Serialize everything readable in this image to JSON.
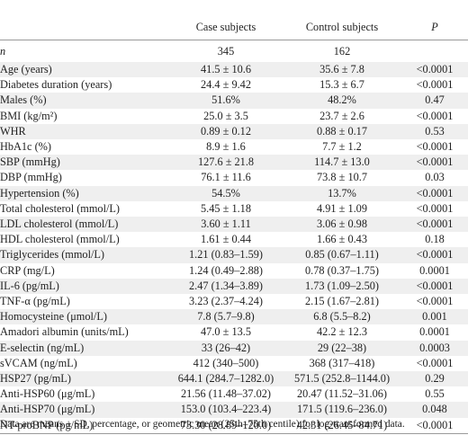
{
  "table": {
    "headers": [
      "",
      "Case subjects",
      "Control subjects",
      "P"
    ],
    "n_row": {
      "label": "n",
      "case": "345",
      "control": "162",
      "p": ""
    },
    "rows": [
      {
        "label": "Age (years)",
        "case": "41.5 ± 10.6",
        "control": "35.6 ± 7.8",
        "p": "<0.0001"
      },
      {
        "label": "Diabetes duration (years)",
        "case": "24.4 ± 9.42",
        "control": "15.3 ± 6.7",
        "p": "<0.0001"
      },
      {
        "label": "Males (%)",
        "case": "51.6%",
        "control": "48.2%",
        "p": "0.47"
      },
      {
        "label": "BMI (kg/m²)",
        "case": "25.0 ± 3.5",
        "control": "23.7 ± 2.6",
        "p": "<0.0001"
      },
      {
        "label": "WHR",
        "case": "0.89 ± 0.12",
        "control": "0.88 ± 0.17",
        "p": "0.53"
      },
      {
        "label": "HbA1c (%)",
        "case": "8.9 ± 1.6",
        "control": "7.7 ± 1.2",
        "p": "<0.0001"
      },
      {
        "label": "SBP (mmHg)",
        "case": "127.6 ± 21.8",
        "control": "114.7 ± 13.0",
        "p": "<0.0001"
      },
      {
        "label": "DBP (mmHg)",
        "case": "76.1 ± 11.6",
        "control": "73.8 ± 10.7",
        "p": "0.03"
      },
      {
        "label": "Hypertension (%)",
        "case": "54.5%",
        "control": "13.7%",
        "p": "<0.0001"
      },
      {
        "label": "Total cholesterol (mmol/L)",
        "case": "5.45 ± 1.18",
        "control": "4.91 ± 1.09",
        "p": "<0.0001"
      },
      {
        "label": "LDL cholesterol (mmol/L)",
        "case": "3.60 ± 1.11",
        "control": "3.06 ± 0.98",
        "p": "<0.0001"
      },
      {
        "label": "HDL cholesterol (mmol/L)",
        "case": "1.61 ± 0.44",
        "control": "1.66 ± 0.43",
        "p": "0.18"
      },
      {
        "label": "Triglycerides (mmol/L)",
        "case": "1.21 (0.83–1.59)",
        "control": "0.85 (0.67–1.11)",
        "p": "<0.0001"
      },
      {
        "label": "CRP (mg/L)",
        "case": "1.24 (0.49–2.88)",
        "control": "0.78 (0.37–1.75)",
        "p": "0.0001"
      },
      {
        "label": "IL-6 (pg/mL)",
        "case": "2.47 (1.34–3.89)",
        "control": "1.73 (1.09–2.50)",
        "p": "<0.0001"
      },
      {
        "label": "TNF-α (pg/mL)",
        "case": "3.23 (2.37–4.24)",
        "control": "2.15 (1.67–2.81)",
        "p": "<0.0001"
      },
      {
        "label": "Homocysteine (μmol/L)",
        "case": "7.8 (5.7–9.8)",
        "control": "6.8 (5.5–8.2)",
        "p": "0.001"
      },
      {
        "label": "Amadori albumin (units/mL)",
        "case": "47.0 ± 13.5",
        "control": "42.2 ± 12.3",
        "p": "0.0001"
      },
      {
        "label": "E-selectin (ng/mL)",
        "case": "33 (26–42)",
        "control": "29 (22–38)",
        "p": "0.0003"
      },
      {
        "label": "sVCAM (ng/mL)",
        "case": "412 (340–500)",
        "control": "368 (317–418)",
        "p": "<0.0001"
      },
      {
        "label": "HSP27 (pg/mL)",
        "case": "644.1 (284.7–1282.0)",
        "control": "571.5 (252.8–1144.0)",
        "p": "0.29"
      },
      {
        "label": "Anti-HSP60 (μg/mL)",
        "case": "21.56 (11.48–37.02)",
        "control": "20.47 (11.52–31.06)",
        "p": "0.55"
      },
      {
        "label": "Anti-HSP70 (μg/mL)",
        "case": "153.0 (103.4–223.4)",
        "control": "171.5 (119.6–236.0)",
        "p": "0.048"
      },
      {
        "label": "NT-proBNP (pg/mL)",
        "case": "73.30 (28.89–120.0)",
        "control": "42.31 (26.45–84.71)",
        "p": "<0.0001"
      }
    ]
  },
  "footnote": "Data are means ± SD, percentage, or geometric mean (25th–75th centile) for log-transformed data."
}
